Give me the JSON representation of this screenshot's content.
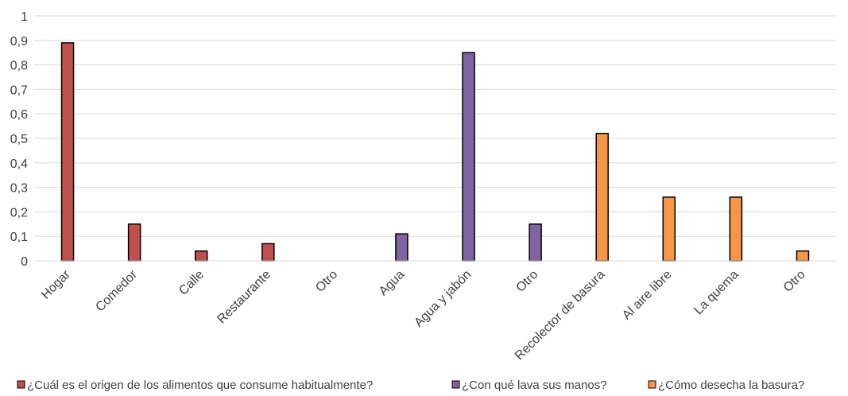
{
  "chart_data": {
    "type": "bar",
    "title": "",
    "xlabel": "",
    "ylabel": "",
    "ylim": [
      0,
      1
    ],
    "y_ticks": [
      "0",
      "0,1",
      "0,2",
      "0,3",
      "0,4",
      "0,5",
      "0,6",
      "0,7",
      "0,8",
      "0,9",
      "1"
    ],
    "grid": true,
    "legend_position": "bottom",
    "categories": [
      "Hogar",
      "Comedor",
      "Calle",
      "Restaurante",
      "Otro",
      "Agua",
      "Agua y jabón",
      "Otro",
      "Recolector de basura",
      "Al aire libre",
      "La quema",
      "Otro"
    ],
    "series": [
      {
        "name": "¿Cuál es el origen de los alimentos que consume habitualmente?",
        "color": "#c0504d",
        "values": [
          0.89,
          0.15,
          0.04,
          0.07,
          0,
          null,
          null,
          null,
          null,
          null,
          null,
          null
        ]
      },
      {
        "name": "¿Con qué lava sus manos?",
        "color": "#8064a2",
        "values": [
          null,
          null,
          null,
          null,
          null,
          0.11,
          0.85,
          0.15,
          null,
          null,
          null,
          null
        ]
      },
      {
        "name": "¿Cómo desecha la basura?",
        "color": "#f79646",
        "values": [
          null,
          null,
          null,
          null,
          null,
          null,
          null,
          null,
          0.52,
          0.26,
          0.26,
          0.04
        ]
      }
    ]
  }
}
